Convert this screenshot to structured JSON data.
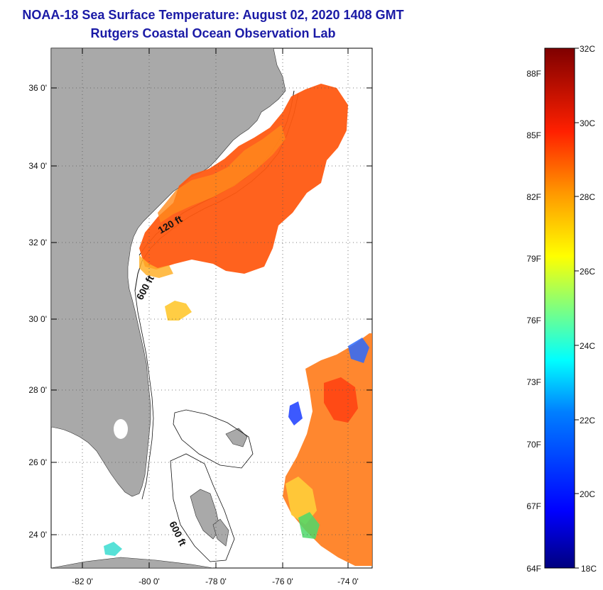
{
  "title": {
    "line1": "NOAA-18 Sea Surface Temperature:  August 02, 2020 1408 GMT",
    "line2": "Rutgers Coastal Ocean Observation Lab"
  },
  "map": {
    "lat_ticks": [
      "36 0'",
      "34 0'",
      "32 0'",
      "30 0'",
      "28 0'",
      "26 0'",
      "24 0'"
    ],
    "lon_ticks": [
      "-82 0'",
      "-80 0'",
      "-78 0'",
      "-76 0'",
      "-74 0'"
    ],
    "lat_range": [
      23,
      37
    ],
    "lon_range": [
      -83,
      -73
    ],
    "contour_labels": [
      "120 ft",
      "600 ft",
      "600 ft"
    ],
    "land_color": "#a9a9a9",
    "grid": true
  },
  "colorbar": {
    "celsius_labels": [
      "32C",
      "30C",
      "28C",
      "26C",
      "24C",
      "22C",
      "20C",
      "18C"
    ],
    "fahrenheit_labels": [
      "88F",
      "85F",
      "82F",
      "79F",
      "76F",
      "73F",
      "70F",
      "67F",
      "64F"
    ],
    "range_c": [
      18,
      32
    ],
    "colors": [
      "#00007f",
      "#0000ff",
      "#007fff",
      "#00ffff",
      "#7fff7f",
      "#ffff00",
      "#ff7f00",
      "#ff0000",
      "#7f0000"
    ]
  }
}
